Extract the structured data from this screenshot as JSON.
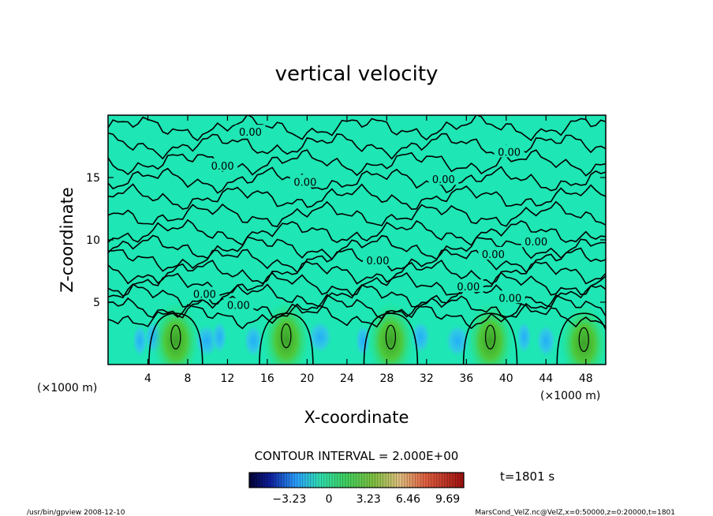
{
  "chart_data": {
    "type": "heatmap",
    "title": "vertical velocity",
    "xlabel": "X-coordinate",
    "ylabel": "Z-coordinate",
    "x_unit_left": "(×1000 m)",
    "x_unit_right": "(×1000 m)",
    "xlim": [
      0,
      50
    ],
    "ylim": [
      0,
      20
    ],
    "x_ticks": [
      4,
      8,
      12,
      16,
      20,
      24,
      28,
      32,
      36,
      40,
      44,
      48
    ],
    "y_ticks": [
      5,
      10,
      15
    ],
    "contour_interval_label": "CONTOUR INTERVAL = 2.000E+00",
    "contour_labels": [
      {
        "text": "0.00",
        "x": 14.3,
        "y": 18.6
      },
      {
        "text": "0.00",
        "x": 11.5,
        "y": 15.9
      },
      {
        "text": "0.00",
        "x": 19.8,
        "y": 14.6
      },
      {
        "text": "0.00",
        "x": 33.7,
        "y": 14.8
      },
      {
        "text": "0.00",
        "x": 40.3,
        "y": 17.0
      },
      {
        "text": "0.00",
        "x": 43.0,
        "y": 9.8
      },
      {
        "text": "0.00",
        "x": 38.7,
        "y": 8.8
      },
      {
        "text": "0.00",
        "x": 27.1,
        "y": 8.3
      },
      {
        "text": "0.00",
        "x": 36.2,
        "y": 6.2
      },
      {
        "text": "0.00",
        "x": 40.4,
        "y": 5.3
      },
      {
        "text": "0.00",
        "x": 9.7,
        "y": 5.6
      },
      {
        "text": "0.00",
        "x": 13.1,
        "y": 4.7
      }
    ],
    "updraft_cores": [
      {
        "x": 6.8,
        "y": 2.2
      },
      {
        "x": 17.9,
        "y": 2.3
      },
      {
        "x": 28.4,
        "y": 2.2
      },
      {
        "x": 38.4,
        "y": 2.2
      },
      {
        "x": 47.8,
        "y": 2.0
      }
    ],
    "colorbar": {
      "ticks": [
        -3.23,
        0,
        3.23,
        6.46,
        9.69
      ],
      "tick_labels": [
        "−3.23",
        "0",
        "3.23",
        "6.46",
        "9.69"
      ],
      "range": [
        -6.5,
        11.0
      ]
    },
    "time_label": "t=1801 s",
    "footer_left": "/usr/bin/gpview   2008-12-10",
    "footer_right": "MarsCond_VelZ.nc@VelZ,x=0:50000,z=0:20000,t=1801"
  }
}
